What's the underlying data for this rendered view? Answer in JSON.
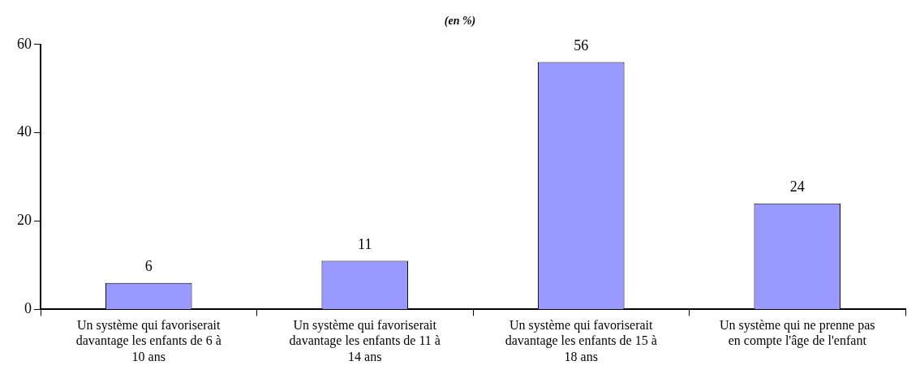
{
  "chart_data": {
    "type": "bar",
    "title": "(en %)",
    "categories": [
      "Un système qui favoriserait davantage les enfants de 6 à 10 ans",
      "Un système qui favoriserait davantage les enfants de 11 à 14 ans",
      "Un système qui favoriserait davantage les enfants de 15 à 18 ans",
      "Un système qui ne prenne pas en compte l'âge de l'enfant"
    ],
    "values": [
      6,
      11,
      56,
      24
    ],
    "color": "#9999ff",
    "ylim": [
      0,
      60
    ],
    "yticks": [
      0,
      20,
      40,
      60
    ],
    "grid": false,
    "legend": false,
    "data_labels": true
  }
}
